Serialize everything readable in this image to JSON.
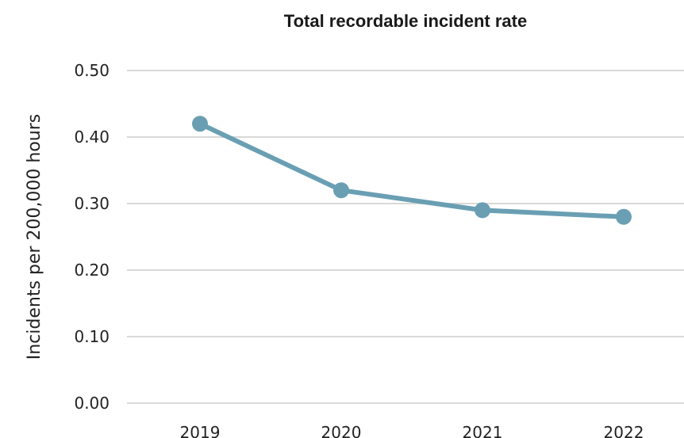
{
  "chart_data": {
    "type": "line",
    "title": "Total recordable incident rate",
    "xlabel": "",
    "ylabel": "Incidents per 200,000 hours",
    "categories": [
      "2019",
      "2020",
      "2021",
      "2022"
    ],
    "series": [
      {
        "values": [
          0.42,
          0.32,
          0.29,
          0.28
        ]
      }
    ],
    "ylim": [
      0,
      0.5
    ],
    "yticks": [
      "0.00",
      "0.10",
      "0.20",
      "0.30",
      "0.40",
      "0.50"
    ],
    "grid": true,
    "legend": "none",
    "colors": {
      "line": "#6a9fb3",
      "grid": "#d9d9d9",
      "text": "#222222"
    }
  }
}
